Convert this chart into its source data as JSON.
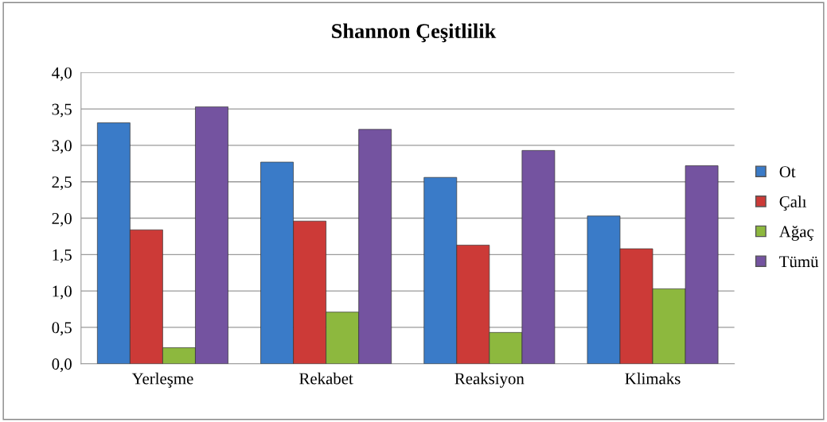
{
  "chart_data": {
    "type": "bar",
    "title": "Shannon Çeşitlilik",
    "categories": [
      "Yerleşme",
      "Rekabet",
      "Reaksiyon",
      "Klimaks"
    ],
    "series": [
      {
        "name": "Ot",
        "color": "#3a7bc8",
        "values": [
          3.31,
          2.77,
          2.56,
          2.03
        ]
      },
      {
        "name": "Çalı",
        "color": "#cc3a37",
        "values": [
          1.84,
          1.96,
          1.63,
          1.58
        ]
      },
      {
        "name": "Ağaç",
        "color": "#8db83e",
        "values": [
          0.22,
          0.71,
          0.43,
          1.03
        ]
      },
      {
        "name": "Tümü",
        "color": "#7453a0",
        "values": [
          3.53,
          3.22,
          2.93,
          2.72
        ]
      }
    ],
    "ylim": [
      0,
      4
    ],
    "yticks": [
      {
        "value": 0,
        "label": "0,0"
      },
      {
        "value": 0.5,
        "label": "0,5"
      },
      {
        "value": 1,
        "label": "1,0"
      },
      {
        "value": 1.5,
        "label": "1,5"
      },
      {
        "value": 2,
        "label": "2,0"
      },
      {
        "value": 2.5,
        "label": "2,5"
      },
      {
        "value": 3,
        "label": "3,0"
      },
      {
        "value": 3.5,
        "label": "3,5"
      },
      {
        "value": 4,
        "label": "4,0"
      }
    ],
    "grid": "y",
    "legend": "right"
  }
}
